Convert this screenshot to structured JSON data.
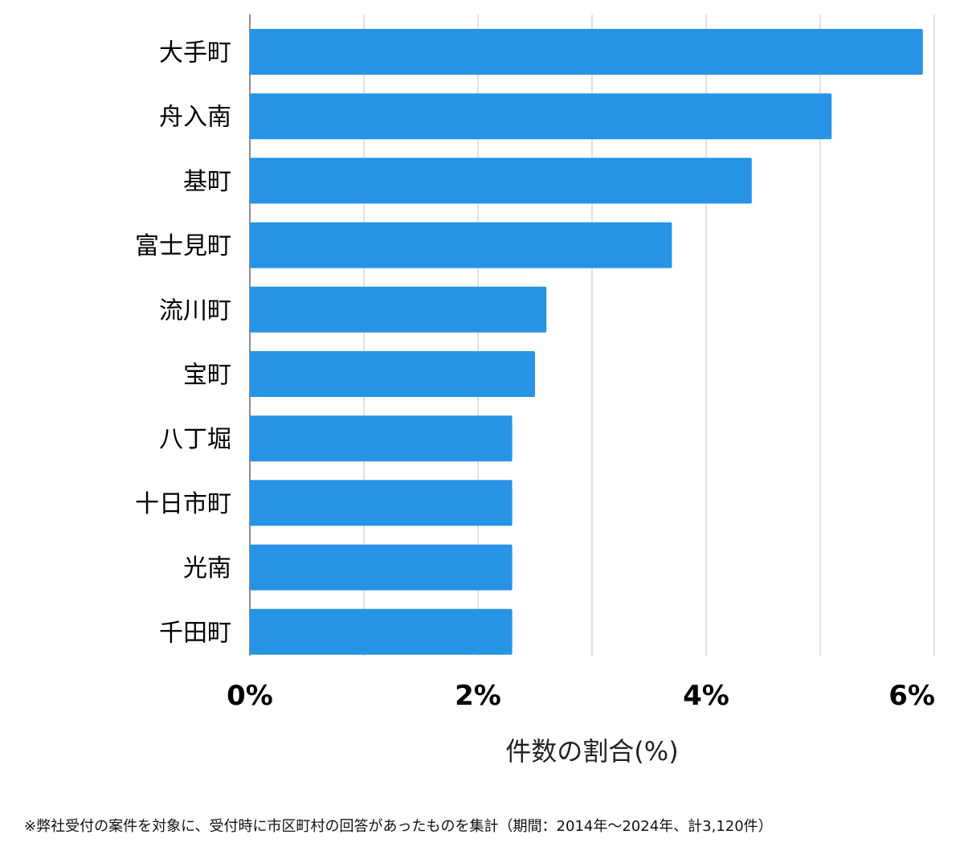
{
  "chart_data": {
    "type": "bar",
    "orientation": "horizontal",
    "categories": [
      "大手町",
      "舟入南",
      "基町",
      "富士見町",
      "流川町",
      "宝町",
      "八丁堀",
      "十日市町",
      "光南",
      "千田町"
    ],
    "values": [
      5.9,
      5.1,
      4.4,
      3.7,
      2.6,
      2.5,
      2.3,
      2.3,
      2.3,
      2.3
    ],
    "xlim": [
      0,
      6
    ],
    "xticks": [
      "0%",
      "2%",
      "4%",
      "6%"
    ],
    "xlabel": "件数の割合(%)",
    "ylabel": "",
    "title": "",
    "grid": true,
    "bar_color": "#2793e5",
    "grid_color": "#d9d9d9",
    "axis_color": "#666666"
  },
  "footnote": "※弊社受付の案件を対象に、受付時に市区町村の回答があったものを集計（期間：2014年〜2024年、計3,120件）"
}
